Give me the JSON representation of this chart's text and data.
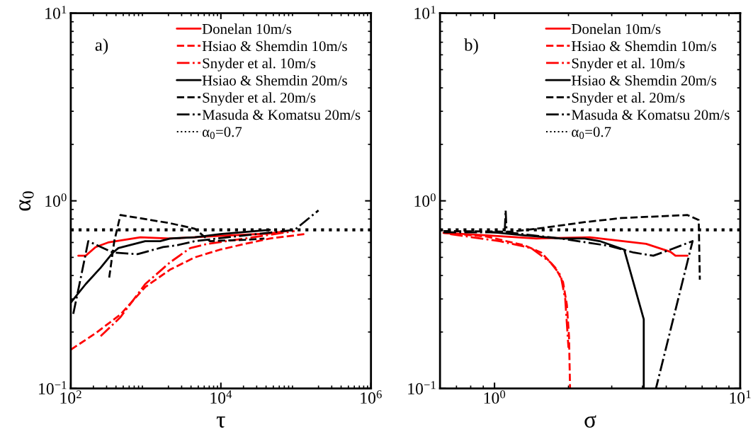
{
  "chart_data": [
    {
      "type": "line",
      "xlabel": "τ",
      "ylabel": "α$_{0}$",
      "log": "xy",
      "legend": "top right",
      "grid": false,
      "xlim": [
        100,
        1000000
      ],
      "xticks": [
        {
          "value": 100,
          "label": "10$^{2}$"
        },
        {
          "value": 10000,
          "label": "10$^{4}$"
        },
        {
          "value": 1000000,
          "label": "10$^{6}$"
        }
      ],
      "ylim": [
        0.1,
        10
      ],
      "yticks": [
        {
          "value": 0.1,
          "label": "10$^{−1}$"
        },
        {
          "value": 1,
          "label": "10$^{0}$"
        },
        {
          "value": 10,
          "label": "10$^{1}$"
        }
      ],
      "annotations": [
        "a)"
      ],
      "ref_lines": [
        {
          "axis": "y",
          "value": 0.7,
          "label": "α$_{0}$=0.7",
          "color": "#000000",
          "line_style": "dotted"
        }
      ],
      "series": [
        {
          "name": "Donelan 10m/s",
          "color": "#ff0000",
          "line_style": "solid",
          "x": [
            126,
            158,
            214,
            314,
            850,
            2100,
            9800,
            45000,
            76000
          ],
          "values": [
            0.51,
            0.51,
            0.567,
            0.6,
            0.64,
            0.63,
            0.65,
            0.67,
            0.69
          ]
        },
        {
          "name": "Hsiao & Shemdin 10m/s",
          "color": "#ff0000",
          "line_style": "dashed",
          "x": [
            100,
            214,
            459,
            980,
            2100,
            4500,
            9800,
            21000,
            45000,
            130000
          ],
          "values": [
            0.161,
            0.197,
            0.248,
            0.347,
            0.43,
            0.5,
            0.55,
            0.59,
            0.63,
            0.665
          ]
        },
        {
          "name": "Snyder et al. 10m/s",
          "color": "#ff0000",
          "line_style": "dashdot",
          "x": [
            250,
            459,
            980,
            2100,
            3900,
            6600,
            21000,
            96000
          ],
          "values": [
            0.19,
            0.24,
            0.36,
            0.47,
            0.56,
            0.59,
            0.63,
            0.69
          ]
        },
        {
          "name": "Hsiao & Shemdin 20m/s",
          "color": "#000000",
          "line_style": "solid",
          "x": [
            100,
            158,
            250,
            365,
            430,
            980,
            1550,
            2100,
            4500,
            9800,
            45000
          ],
          "values": [
            0.287,
            0.36,
            0.44,
            0.53,
            0.56,
            0.61,
            0.61,
            0.63,
            0.64,
            0.665,
            0.7
          ]
        },
        {
          "name": "Snyder et al. 20m/s",
          "color": "#000000",
          "line_style": "dashed",
          "x": [
            325,
            380,
            459,
            980,
            2100,
            4500,
            7100,
            21000,
            38000
          ],
          "values": [
            0.39,
            0.61,
            0.84,
            0.8,
            0.76,
            0.71,
            0.61,
            0.62,
            0.63
          ]
        },
        {
          "name": "Masuda & Komatsu 20m/s",
          "color": "#000000",
          "line_style": "dashdot",
          "x": [
            108,
            136,
            171,
            365,
            780,
            1700,
            2600,
            4500,
            21000,
            96000,
            200000
          ],
          "values": [
            0.25,
            0.39,
            0.61,
            0.53,
            0.52,
            0.567,
            0.58,
            0.61,
            0.655,
            0.7,
            0.89
          ]
        }
      ]
    },
    {
      "type": "line",
      "xlabel": "σ",
      "log": "xy",
      "legend": "top right",
      "grid": false,
      "xlim": [
        0.6,
        10
      ],
      "xticks": [
        {
          "value": 1,
          "label": "10$^{0}$"
        },
        {
          "value": 10,
          "label": "10$^{1}$"
        }
      ],
      "ylim": [
        0.1,
        10
      ],
      "yticks": [
        {
          "value": 0.1,
          "label": "10$^{−1}$"
        },
        {
          "value": 1,
          "label": "10$^{0}$"
        },
        {
          "value": 10,
          "label": "10$^{1}$"
        }
      ],
      "annotations": [
        "b)"
      ],
      "ref_lines": [
        {
          "axis": "y",
          "value": 0.7,
          "label": "α$_{0}$=0.7",
          "color": "#000000",
          "line_style": "dotted"
        }
      ],
      "series": [
        {
          "name": "Donelan 10m/s",
          "color": "#ff0000",
          "line_style": "solid",
          "x": [
            0.62,
            0.93,
            1.48,
            2.44,
            4.14,
            5.2,
            5.45,
            6.1
          ],
          "values": [
            0.675,
            0.655,
            0.63,
            0.64,
            0.59,
            0.535,
            0.51,
            0.51
          ]
        },
        {
          "name": "Hsiao & Shemdin 10m/s",
          "color": "#ff0000",
          "line_style": "dashed",
          "x": [
            0.62,
            0.93,
            1.32,
            1.55,
            1.77,
            1.9,
            1.97,
            2.01,
            2.03
          ],
          "values": [
            0.675,
            0.645,
            0.58,
            0.53,
            0.44,
            0.37,
            0.28,
            0.19,
            0.1
          ]
        },
        {
          "name": "Snyder et al. 10m/s",
          "color": "#ff0000",
          "line_style": "dashdot",
          "x": [
            0.66,
            1.05,
            1.41,
            1.69,
            1.86,
            1.94,
            2.0
          ],
          "values": [
            0.665,
            0.61,
            0.56,
            0.47,
            0.4,
            0.3,
            0.165
          ]
        },
        {
          "name": "Hsiao & Shemdin 20m/s",
          "color": "#000000",
          "line_style": "solid",
          "x": [
            0.93,
            1.32,
            1.86,
            2.33,
            2.68,
            3.37,
            4.05,
            4.05
          ],
          "values": [
            0.685,
            0.655,
            0.63,
            0.63,
            0.61,
            0.55,
            0.234,
            0.1
          ]
        },
        {
          "name": "Snyder et al. 20m/s",
          "color": "#000000",
          "line_style": "dashed",
          "x": [
            0.62,
            1.17,
            1.48,
            2.33,
            3.29,
            6.1,
            6.78,
            6.85
          ],
          "values": [
            0.69,
            0.685,
            0.71,
            0.77,
            0.81,
            0.84,
            0.79,
            0.38
          ]
        },
        {
          "name": "Masuda & Komatsu 20m/s",
          "color": "#000000",
          "line_style": "dashdot",
          "x": [
            0.62,
            1.1,
            1.11,
            1.12,
            1.86,
            2.94,
            3.69,
            4.43,
            5.2,
            6.4,
            4.54
          ],
          "values": [
            0.68,
            0.68,
            0.89,
            0.68,
            0.63,
            0.575,
            0.53,
            0.51,
            0.55,
            0.61,
            0.1
          ]
        }
      ]
    }
  ]
}
